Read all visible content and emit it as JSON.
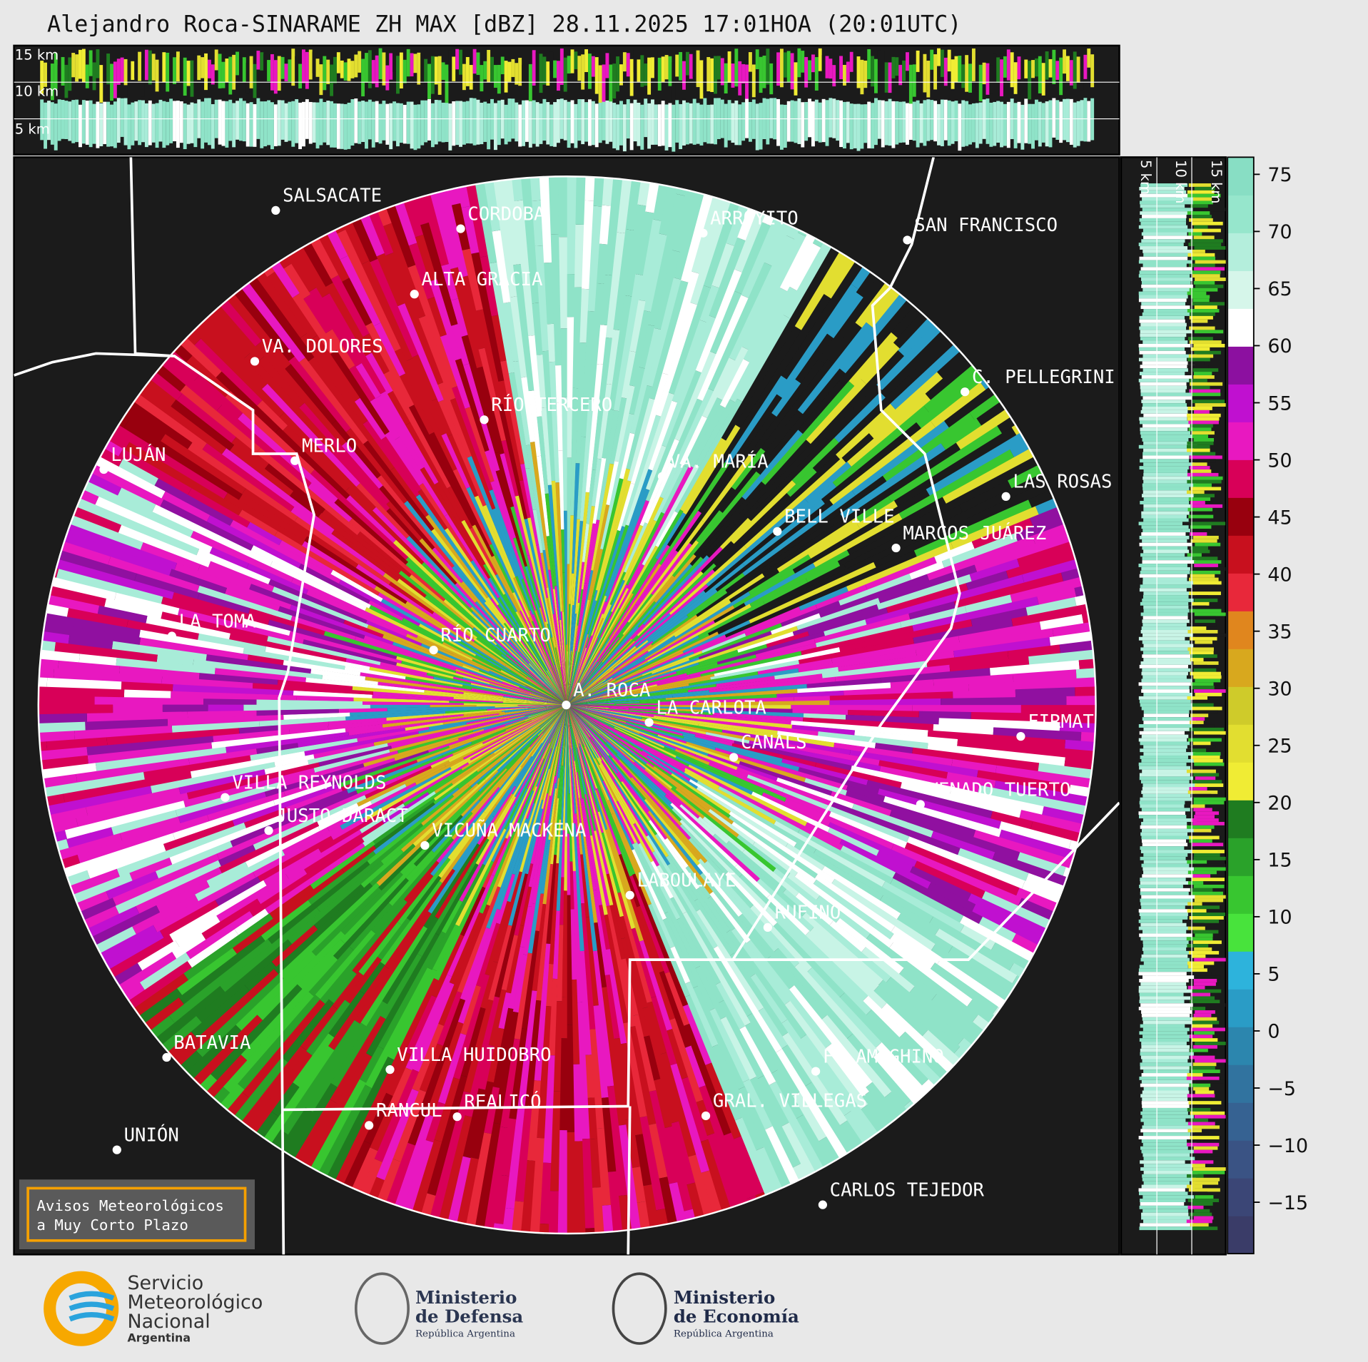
{
  "title": "Alejandro Roca-SINARAME ZH MAX [dBZ] 28.11.2025 17:01HOA (20:01UTC)",
  "height_labels": {
    "top": [
      "15 km",
      "10 km",
      "5 km"
    ],
    "side": [
      "5 km",
      "10 km",
      "15 km"
    ]
  },
  "cities": [
    "SALSACATE",
    "CORDOBA",
    "ARROYITO",
    "SAN FRANCISCO",
    "ALTA GRACIA",
    "VA. DOLORES",
    "C. PELLEGRINI",
    "RÍO TERCERO",
    "VA. MARÍA",
    "MERLO",
    "LUJÁN",
    "LAS ROSAS",
    "BELL VILLE",
    "MARCOS JUÁREZ",
    "LA TOMA",
    "RÍO CUARTO",
    "A. ROCA",
    "LA CARLOTA",
    "CANALS",
    "FIRMAT",
    "VILLA REYNOLDS",
    "VENADO TUERTO",
    "JUSTO DARACT",
    "VICUÑA MACKENA",
    "LABOULAYE",
    "RUFINO",
    "BATAVIA",
    "VILLA HUIDOBRO",
    "F. AMEGHINO",
    "RANCUL",
    "REALICÓ",
    "GRAL. VILLEGAS",
    "UNIÓN",
    "CARLOS TEJEDOR"
  ],
  "notice": [
    "Avisos Meteorológicos",
    "a Muy Corto Plazo"
  ],
  "colorbar": {
    "lim": [
      -19.5,
      76.5
    ],
    "ticks": [
      75,
      70,
      65,
      60,
      55,
      50,
      45,
      40,
      35,
      30,
      25,
      20,
      15,
      10,
      5,
      0,
      {
        "value": -5,
        "label": "−5"
      },
      {
        "value": -10,
        "label": "−10"
      },
      {
        "value": -15,
        "label": "−15"
      }
    ],
    "colors": [
      "#3a3c68",
      "#3b4676",
      "#3a5384",
      "#366292",
      "#31739f",
      "#2c86ae",
      "#2a9cc6",
      "#2db3dc",
      "#48e33c",
      "#38c630",
      "#2aa22a",
      "#1f7c20",
      "#f0ec34",
      "#e2de30",
      "#cfcb2a",
      "#d8a81e",
      "#e0861e",
      "#e8283a",
      "#c8101e",
      "#98000e",
      "#d80058",
      "#e818c0",
      "#c010d0",
      "#8c10a0",
      "#ffffff",
      "#d6f6ea",
      "#b4eedc",
      "#96e6cc",
      "#88dec4"
    ]
  },
  "logos": {
    "smn": [
      "Servicio",
      "Meteorológico",
      "Nacional",
      "Argentina"
    ],
    "defensa": [
      "Ministerio",
      "de Defensa",
      "República Argentina"
    ],
    "economia": [
      "Ministerio",
      "de Economía",
      "República Argentina"
    ]
  }
}
